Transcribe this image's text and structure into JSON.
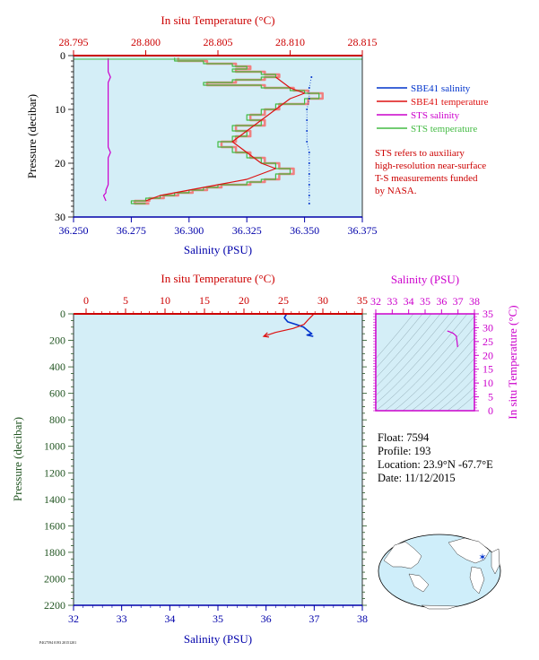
{
  "colors": {
    "bg": "#d4eef7",
    "axis_red": "#cc0000",
    "axis_blue": "#0000aa",
    "axis_magenta": "#cc00cc",
    "axis_green": "#225522",
    "sbe_sal": "#0033cc",
    "sbe_temp": "#dd1111",
    "sts_sal": "#cc00cc",
    "sts_temp": "#44bb44",
    "sts_temp_light": "#f08080",
    "text_dark": "#000000"
  },
  "chart_data": [
    {
      "id": "top",
      "type": "line",
      "top_axis": {
        "label": "In situ Temperature (°C)",
        "ticks": [
          "28.795",
          "28.800",
          "28.805",
          "28.810",
          "28.815"
        ],
        "range": [
          28.795,
          28.815
        ]
      },
      "bottom_axis": {
        "label": "Salinity (PSU)",
        "ticks": [
          "36.250",
          "36.275",
          "36.300",
          "36.325",
          "36.350",
          "36.375"
        ],
        "range": [
          36.25,
          36.375
        ]
      },
      "left_axis": {
        "label": "Pressure (decibar)",
        "ticks": [
          "0",
          "10",
          "20",
          "30"
        ],
        "range": [
          0,
          30
        ],
        "inverted": true
      },
      "legend": [
        {
          "name": "SBE41 salinity",
          "color": "#0033cc"
        },
        {
          "name": "SBE41 temperature",
          "color": "#dd1111"
        },
        {
          "name": "STS salinity",
          "color": "#cc00cc"
        },
        {
          "name": "STS temperature",
          "color": "#44bb44"
        }
      ],
      "note": [
        "STS refers to auxiliary",
        "high-resolution near-surface",
        "T-S measurements funded",
        "by NASA."
      ],
      "series": [
        {
          "name": "STS salinity",
          "axis": "salinity",
          "points": [
            [
              36.265,
              0.5
            ],
            [
              36.265,
              1
            ],
            [
              36.265,
              2
            ],
            [
              36.265,
              3
            ],
            [
              36.266,
              4
            ],
            [
              36.265,
              5
            ],
            [
              36.265,
              6
            ],
            [
              36.265,
              7
            ],
            [
              36.265,
              8
            ],
            [
              36.265,
              9
            ],
            [
              36.265,
              10
            ],
            [
              36.265,
              11
            ],
            [
              36.265,
              12
            ],
            [
              36.265,
              13
            ],
            [
              36.265,
              14
            ],
            [
              36.265,
              15
            ],
            [
              36.265,
              16
            ],
            [
              36.265,
              17
            ],
            [
              36.266,
              18
            ],
            [
              36.265,
              19
            ],
            [
              36.265,
              20
            ],
            [
              36.265,
              21
            ],
            [
              36.265,
              22
            ],
            [
              36.265,
              23
            ],
            [
              36.265,
              24
            ],
            [
              36.264,
              25
            ],
            [
              36.264,
              25.5
            ],
            [
              36.263,
              26
            ],
            [
              36.264,
              27
            ]
          ]
        },
        {
          "name": "STS temperature",
          "axis": "temperature",
          "points": [
            [
              28.802,
              0.4
            ],
            [
              28.804,
              1
            ],
            [
              28.806,
              1.5
            ],
            [
              28.807,
              2
            ],
            [
              28.806,
              2.5
            ],
            [
              28.808,
              3
            ],
            [
              28.809,
              3.5
            ],
            [
              28.808,
              4
            ],
            [
              28.806,
              4.5
            ],
            [
              28.804,
              5
            ],
            [
              28.808,
              5.5
            ],
            [
              28.81,
              6
            ],
            [
              28.811,
              6.5
            ],
            [
              28.812,
              7
            ],
            [
              28.811,
              8
            ],
            [
              28.809,
              9
            ],
            [
              28.808,
              10
            ],
            [
              28.807,
              11
            ],
            [
              28.808,
              12
            ],
            [
              28.806,
              13
            ],
            [
              28.807,
              14
            ],
            [
              28.806,
              15
            ],
            [
              28.805,
              16
            ],
            [
              28.806,
              17
            ],
            [
              28.807,
              18
            ],
            [
              28.808,
              19
            ],
            [
              28.809,
              20
            ],
            [
              28.81,
              21
            ],
            [
              28.809,
              22
            ],
            [
              28.808,
              23
            ],
            [
              28.807,
              23.5
            ],
            [
              28.805,
              24
            ],
            [
              28.804,
              24.5
            ],
            [
              28.803,
              25
            ],
            [
              28.802,
              25.5
            ],
            [
              28.801,
              26
            ],
            [
              28.8,
              26.5
            ],
            [
              28.799,
              27
            ],
            [
              28.8,
              27.5
            ]
          ]
        },
        {
          "name": "SBE41 salinity",
          "axis": "salinity",
          "points": [
            [
              36.353,
              4
            ],
            [
              36.352,
              6
            ],
            [
              36.352,
              8
            ],
            [
              36.351,
              10
            ],
            [
              36.351,
              12
            ],
            [
              36.351,
              14
            ],
            [
              36.351,
              16
            ],
            [
              36.352,
              18
            ],
            [
              36.352,
              20
            ],
            [
              36.352,
              22
            ],
            [
              36.352,
              24
            ],
            [
              36.352,
              26
            ],
            [
              36.352,
              27.5
            ]
          ]
        },
        {
          "name": "SBE41 temperature",
          "axis": "temperature",
          "points": [
            [
              28.809,
              4
            ],
            [
              28.81,
              6
            ],
            [
              28.811,
              7
            ],
            [
              28.81,
              8
            ],
            [
              28.809,
              10
            ],
            [
              28.808,
              12
            ],
            [
              28.807,
              14
            ],
            [
              28.806,
              16
            ],
            [
              28.807,
              18
            ],
            [
              28.808,
              20
            ],
            [
              28.809,
              21
            ],
            [
              28.808,
              22
            ],
            [
              28.807,
              23
            ],
            [
              28.805,
              24
            ],
            [
              28.803,
              25
            ],
            [
              28.801,
              26
            ],
            [
              28.8,
              27
            ]
          ]
        }
      ]
    },
    {
      "id": "bottom",
      "type": "line",
      "top_axis": {
        "label": "In situ Temperature (°C)",
        "ticks": [
          "0",
          "5",
          "10",
          "15",
          "20",
          "25",
          "30",
          "35"
        ],
        "range": [
          0,
          35
        ]
      },
      "bottom_axis": {
        "label": "Salinity (PSU)",
        "ticks": [
          "32",
          "33",
          "34",
          "35",
          "36",
          "37",
          "38"
        ],
        "range": [
          32,
          38
        ]
      },
      "left_axis": {
        "label": "Pressure (decibar)",
        "ticks": [
          "0",
          "200",
          "400",
          "600",
          "800",
          "1000",
          "1200",
          "1400",
          "1600",
          "1800",
          "2000",
          "2200"
        ],
        "range": [
          0,
          2200
        ],
        "inverted": true
      },
      "series": [
        {
          "name": "SBE41 salinity",
          "axis": "salinity",
          "points": [
            [
              36.42,
              5
            ],
            [
              36.38,
              30
            ],
            [
              36.45,
              60
            ],
            [
              36.62,
              80
            ],
            [
              36.78,
              100
            ],
            [
              36.88,
              130
            ],
            [
              36.95,
              150
            ],
            [
              36.85,
              160
            ],
            [
              36.98,
              170
            ]
          ]
        },
        {
          "name": "SBE41 temperature",
          "axis": "temperature",
          "points": [
            [
              28.8,
              5
            ],
            [
              28.2,
              40
            ],
            [
              27.6,
              80
            ],
            [
              26.2,
              110
            ],
            [
              24.0,
              140
            ],
            [
              22.5,
              170
            ]
          ]
        }
      ]
    },
    {
      "id": "ts",
      "type": "line",
      "top_axis": {
        "label": "Salinity (PSU)",
        "ticks": [
          "32",
          "33",
          "34",
          "35",
          "36",
          "37",
          "38"
        ],
        "range": [
          32,
          38
        ]
      },
      "right_axis": {
        "label": "In situ Temperature (°C)",
        "ticks": [
          "0",
          "5",
          "10",
          "15",
          "20",
          "25",
          "30",
          "35"
        ],
        "range": [
          0,
          35
        ]
      },
      "series": [
        {
          "name": "T-S profile",
          "axis": "ts",
          "points": [
            [
              36.35,
              28.8
            ],
            [
              36.5,
              28.5
            ],
            [
              36.7,
              28.0
            ],
            [
              36.9,
              27.0
            ],
            [
              36.95,
              24.5
            ],
            [
              36.98,
              23.0
            ]
          ]
        }
      ]
    }
  ],
  "info": {
    "float": "Float:  7594",
    "profile": "Profile:  193",
    "location": "Location:  23.9°N  -67.7°E",
    "date": "Date:  11/12/2015"
  },
  "footer_tiny": "P4G7594 0193 20151201"
}
